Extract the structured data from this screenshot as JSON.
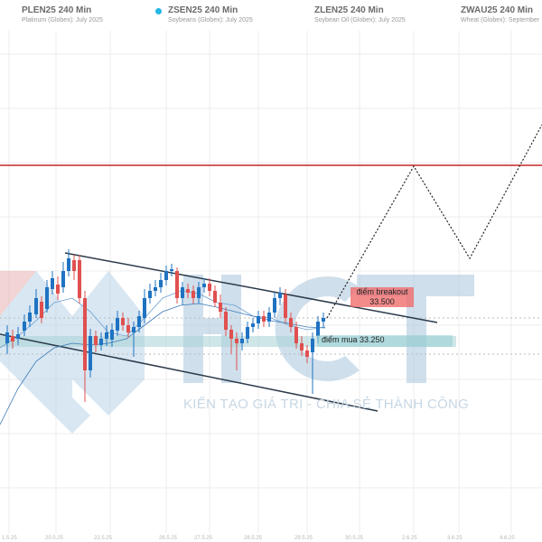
{
  "header": {
    "symbols": [
      {
        "name": "PLEN25 240 Min",
        "subtitle": "Platinum (Globex): July 2025",
        "active": false
      },
      {
        "name": "ZSEN25 240 Min",
        "subtitle": "Soybeans (Globex): July 2025",
        "active": true
      },
      {
        "name": "ZLEN25 240 Min",
        "subtitle": "Soybean Oil (Globex): July 2025",
        "active": false
      },
      {
        "name": "ZWAU25 240 Min",
        "subtitle": "Wheat (Globex): September",
        "active": false
      }
    ]
  },
  "annotations": {
    "breakout_label": "điểm breakout",
    "breakout_value": "33.500",
    "buy_label": "điểm mua 33.250"
  },
  "watermark": {
    "logo_text": "HCT",
    "slogan": "KIẾN TẠO GIÁ TRỊ - CHIA SẺ THÀNH CÔNG"
  },
  "colors": {
    "up": "#1f73c2",
    "down": "#e0504f",
    "resistance": "#c62828",
    "channel": "#2b3a4a",
    "accent": "#22b7e6"
  }
}
